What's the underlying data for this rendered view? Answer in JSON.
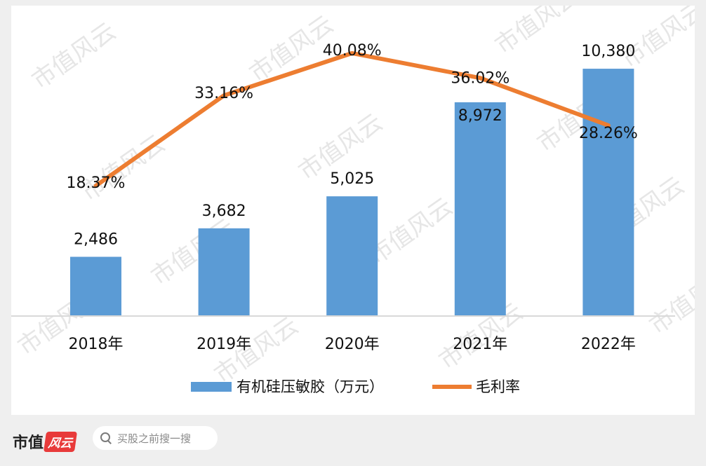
{
  "chart_data": {
    "type": "bar",
    "categories": [
      "2018年",
      "2019年",
      "2020年",
      "2021年",
      "2022年"
    ],
    "series": [
      {
        "name": "有机硅压敏胶（万元）",
        "kind": "bar",
        "values": [
          2486,
          3682,
          5025,
          8972,
          10380
        ],
        "labels": [
          "2,486",
          "3,682",
          "5,025",
          "8,972",
          "10,380"
        ],
        "color": "#5b9bd5"
      },
      {
        "name": "毛利率",
        "kind": "line",
        "values": [
          18.37,
          33.16,
          40.08,
          36.02,
          28.26
        ],
        "labels": [
          "18.37%",
          "33.16%",
          "40.08%",
          "36.02%",
          "28.26%"
        ],
        "color": "#ed7d31"
      }
    ],
    "legend_position": "bottom",
    "grid": false
  },
  "watermark": {
    "text": "市值风云",
    "color": "#e6e6e6"
  },
  "footer": {
    "brand_text": "市值",
    "brand_logo_text": "风云",
    "search_placeholder": "买股之前搜一搜"
  }
}
